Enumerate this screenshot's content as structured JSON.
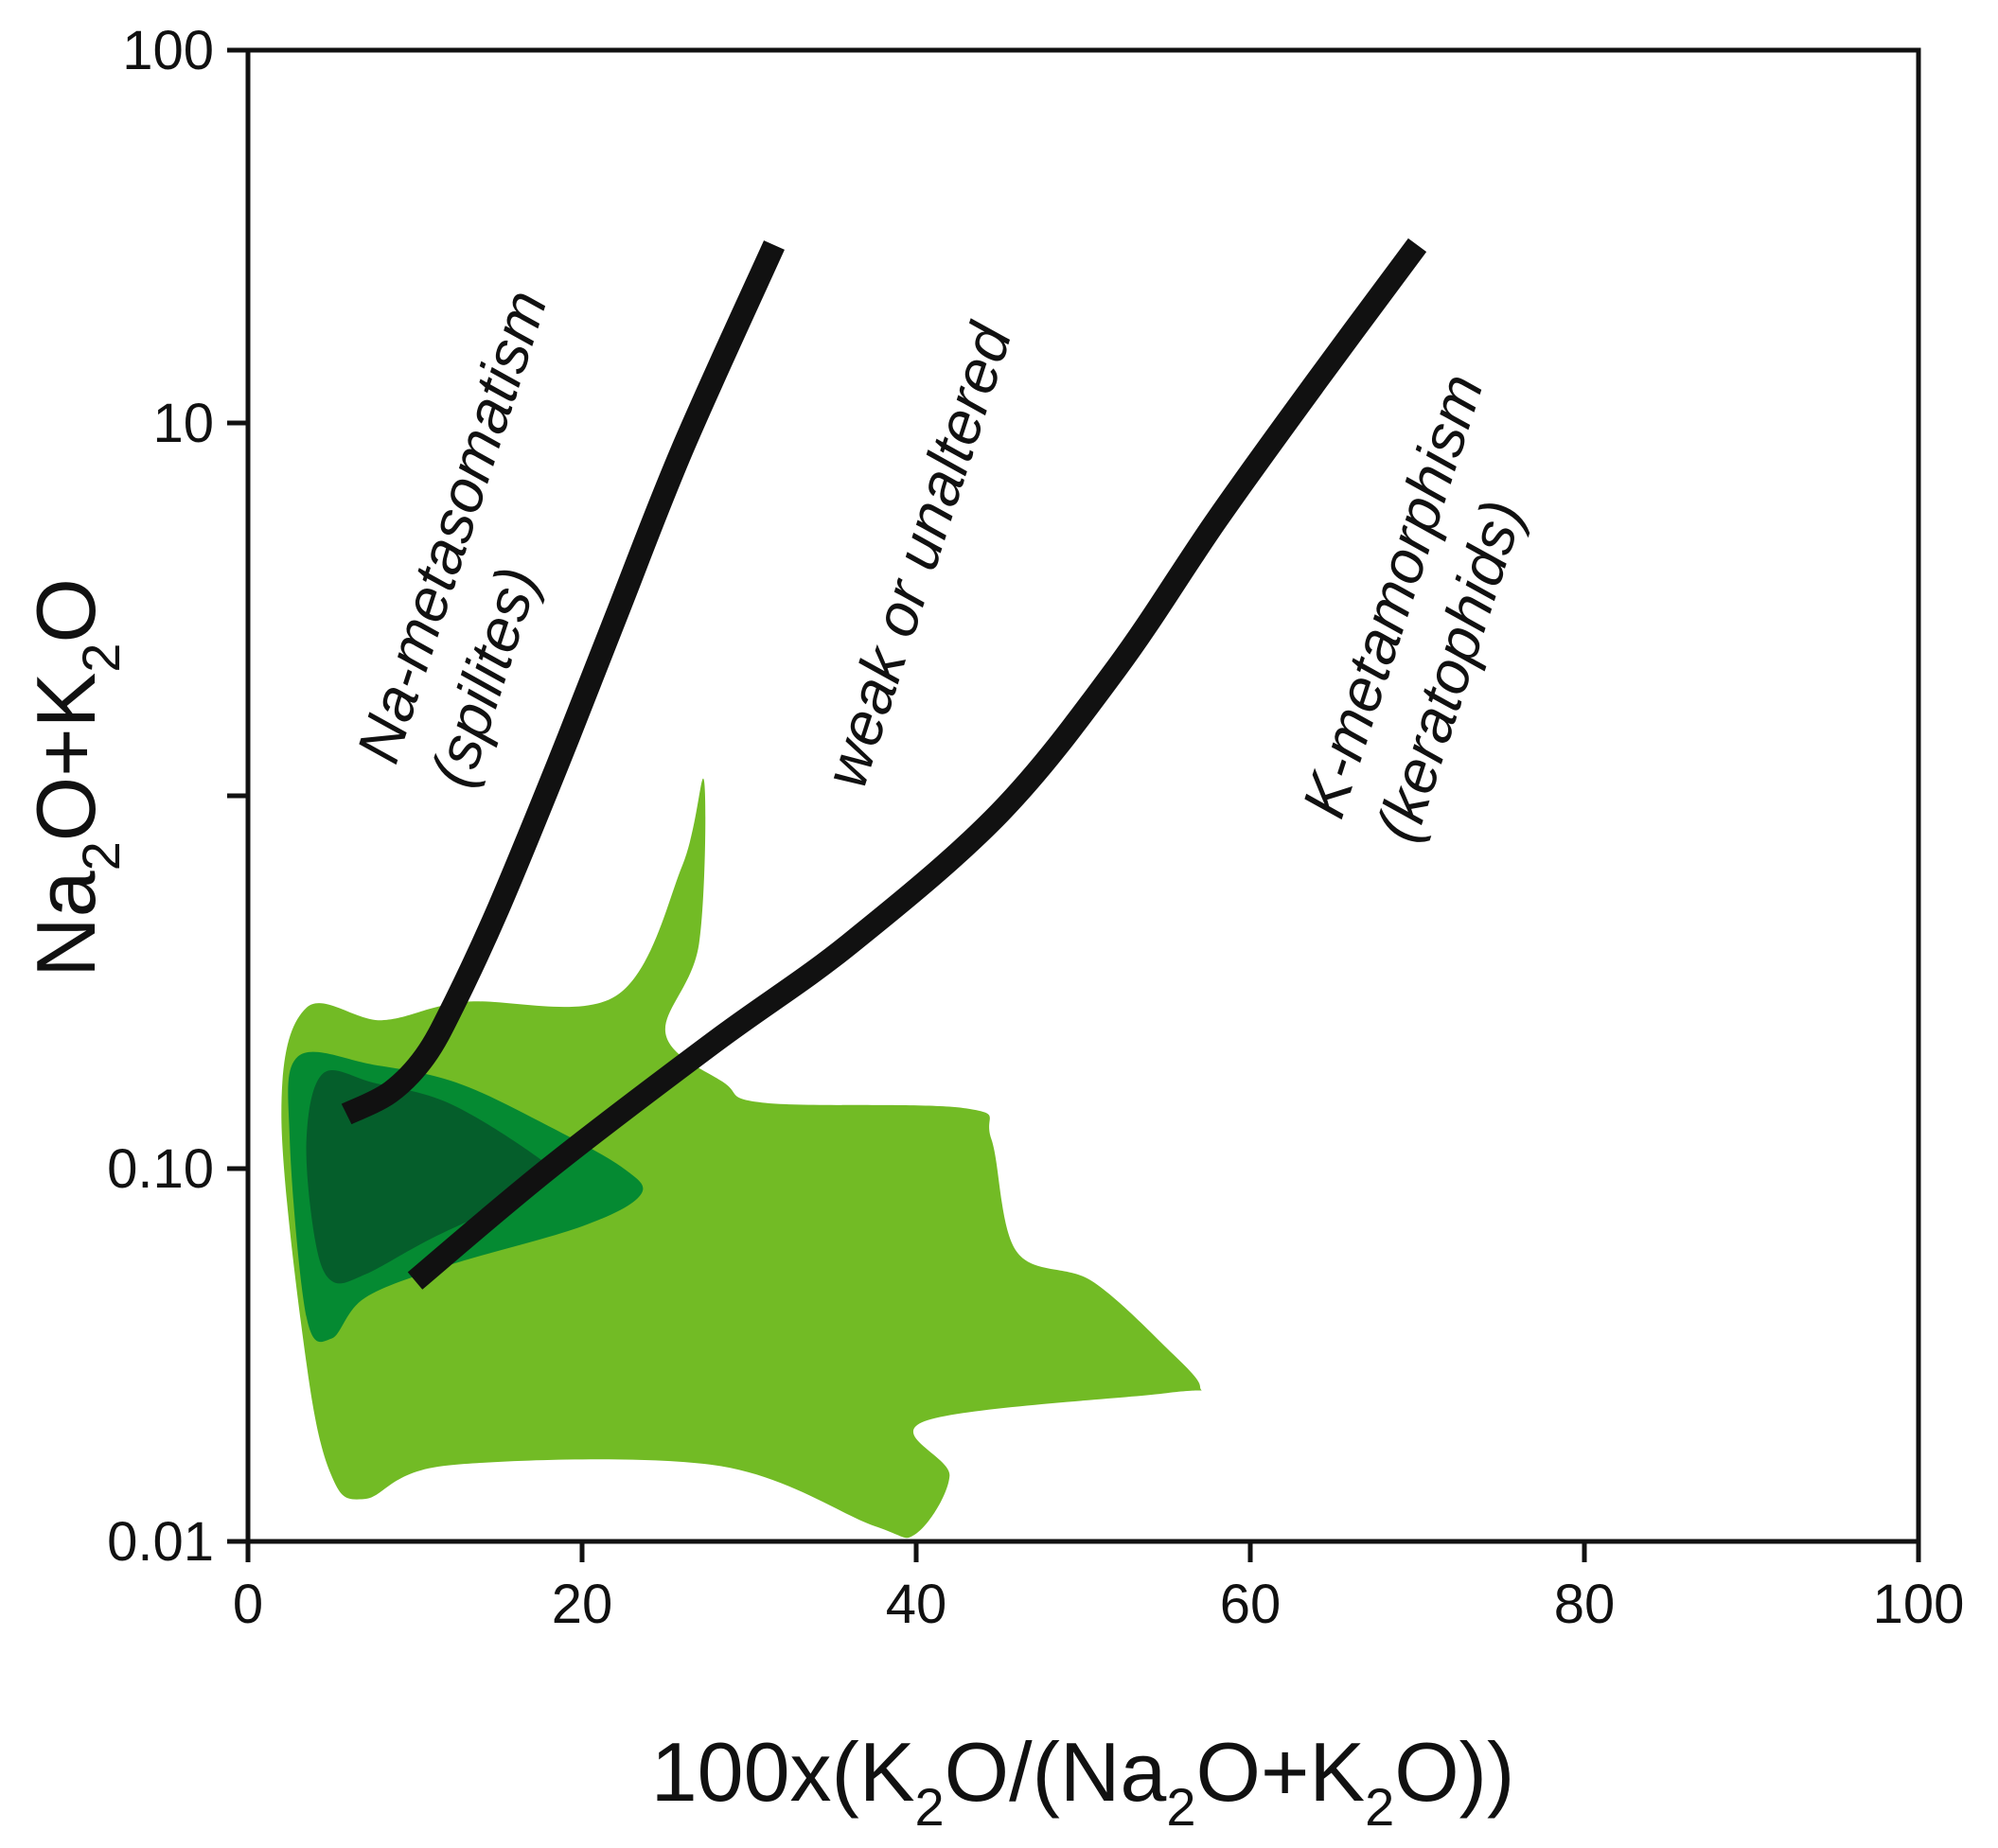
{
  "chart_data": {
    "type": "scatter",
    "title": "",
    "x_axis": {
      "label_parts": [
        "100x(K",
        "2",
        "O/(Na",
        "2",
        "O+K",
        "2",
        "O))"
      ],
      "range": [
        0,
        100
      ],
      "ticks": [
        0,
        20,
        40,
        60,
        80,
        100
      ],
      "tick_labels": [
        "0",
        "20",
        "40",
        "60",
        "80",
        "100"
      ]
    },
    "y_axis": {
      "label_parts": [
        "Na",
        "2",
        "O+K",
        "2",
        "O"
      ],
      "scale": "log",
      "range": [
        0.01,
        100
      ],
      "major_ticks": [
        0.01,
        0.1,
        10,
        100
      ],
      "tick_labels": [
        "0.01",
        "0.10",
        "10",
        "100"
      ],
      "minor_ticks": [
        1
      ]
    },
    "grid": false,
    "legend": "none",
    "boundary_lines": [
      {
        "name": "Na-metasomatism / weak or unaltered boundary",
        "points": [
          [
            5.9,
            0.14
          ],
          [
            8.5,
            0.16
          ],
          [
            10.6,
            0.2
          ],
          [
            12.4,
            0.28
          ],
          [
            15,
            0.5
          ],
          [
            18.5,
            1.2
          ],
          [
            22,
            3
          ],
          [
            26,
            8.5
          ],
          [
            31.5,
            30
          ]
        ]
      },
      {
        "name": "weak or unaltered / K-metamorphism boundary",
        "points": [
          [
            10,
            0.05
          ],
          [
            18,
            0.1
          ],
          [
            28,
            0.22
          ],
          [
            36,
            0.4
          ],
          [
            45,
            0.9
          ],
          [
            52,
            2.2
          ],
          [
            58,
            5.5
          ],
          [
            64,
            13
          ],
          [
            70,
            30
          ]
        ]
      }
    ],
    "density_regions": [
      {
        "level": "outer",
        "color": "#72bb25",
        "outline": [
          [
            3.5,
            0.27
          ],
          [
            8,
            0.25
          ],
          [
            13,
            0.28
          ],
          [
            22,
            0.29
          ],
          [
            26,
            0.65
          ],
          [
            27.3,
            1.1
          ],
          [
            27,
            0.4
          ],
          [
            25,
            0.23
          ],
          [
            28.5,
            0.17
          ],
          [
            31,
            0.15
          ],
          [
            43,
            0.145
          ],
          [
            44.5,
            0.12
          ],
          [
            46,
            0.06
          ],
          [
            50.5,
            0.05
          ],
          [
            55,
            0.033
          ],
          [
            57,
            0.026
          ],
          [
            55,
            0.025
          ],
          [
            40.5,
            0.021
          ],
          [
            42,
            0.015
          ],
          [
            40,
            0.0105
          ],
          [
            37.5,
            0.011
          ],
          [
            28,
            0.016
          ],
          [
            12,
            0.016
          ],
          [
            7,
            0.013
          ],
          [
            5,
            0.015
          ],
          [
            3.5,
            0.03
          ],
          [
            2,
            0.14
          ],
          [
            3.5,
            0.27
          ]
        ]
      },
      {
        "level": "middle",
        "color": "#058a32",
        "outline": [
          [
            3,
            0.2
          ],
          [
            7.5,
            0.19
          ],
          [
            12.5,
            0.17
          ],
          [
            18,
            0.13
          ],
          [
            22.5,
            0.1
          ],
          [
            23.5,
            0.085
          ],
          [
            20,
            0.07
          ],
          [
            12,
            0.055
          ],
          [
            7,
            0.045
          ],
          [
            5,
            0.035
          ],
          [
            3.5,
            0.04
          ],
          [
            2.5,
            0.12
          ],
          [
            3,
            0.2
          ]
        ]
      },
      {
        "level": "inner",
        "color": "#055e2b",
        "outline": [
          [
            4.5,
            0.18
          ],
          [
            7.5,
            0.17
          ],
          [
            12,
            0.15
          ],
          [
            17,
            0.11
          ],
          [
            18,
            0.097
          ],
          [
            16.5,
            0.085
          ],
          [
            11,
            0.065
          ],
          [
            7,
            0.052
          ],
          [
            5,
            0.05
          ],
          [
            4,
            0.065
          ],
          [
            3.5,
            0.12
          ],
          [
            4.5,
            0.18
          ]
        ]
      }
    ],
    "annotations": [
      {
        "lines": [
          "Na-metasomatism",
          "(spilites)"
        ]
      },
      {
        "lines": [
          "weak or unaltered"
        ]
      },
      {
        "lines": [
          "K-metamorphism",
          "(keratophids)"
        ]
      }
    ],
    "colors": {
      "axis": "#111111",
      "boundary": "#111111"
    }
  }
}
